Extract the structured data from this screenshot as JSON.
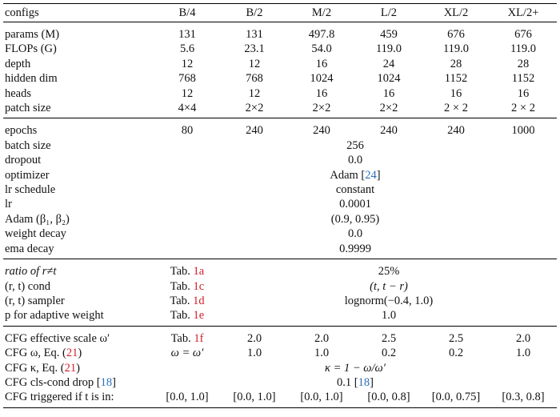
{
  "header": {
    "configs": "configs",
    "cols": [
      "B/4",
      "B/2",
      "M/2",
      "L/2",
      "XL/2",
      "XL/2+"
    ]
  },
  "arch": {
    "params": {
      "label": "params (M)",
      "vals": [
        "131",
        "131",
        "497.8",
        "459",
        "676",
        "676"
      ]
    },
    "flops": {
      "label": "FLOPs (G)",
      "vals": [
        "5.6",
        "23.1",
        "54.0",
        "119.0",
        "119.0",
        "119.0"
      ]
    },
    "depth": {
      "label": "depth",
      "vals": [
        "12",
        "12",
        "16",
        "24",
        "28",
        "28"
      ]
    },
    "hidden": {
      "label": "hidden dim",
      "vals": [
        "768",
        "768",
        "1024",
        "1024",
        "1152",
        "1152"
      ]
    },
    "heads": {
      "label": "heads",
      "vals": [
        "12",
        "12",
        "16",
        "16",
        "16",
        "16"
      ]
    },
    "patch": {
      "label": "patch size",
      "vals": [
        "4×4",
        "2×2",
        "2×2",
        "2×2",
        "2 × 2",
        "2 × 2"
      ]
    }
  },
  "train": {
    "epochs": {
      "label": "epochs",
      "vals": [
        "80",
        "240",
        "240",
        "240",
        "240",
        "1000"
      ]
    },
    "batch": {
      "label": "batch size",
      "val": "256"
    },
    "dropout": {
      "label": "dropout",
      "val": "0.0"
    },
    "optimizer": {
      "label": "optimizer",
      "val": "Adam [",
      "ref": "24",
      "close": "]"
    },
    "lr_schedule": {
      "label": "lr schedule",
      "val": "constant"
    },
    "lr": {
      "label": "lr",
      "val": "0.0001"
    },
    "adam_beta": {
      "label": "Adam (β₁, β₂)",
      "val": "(0.9, 0.95)"
    },
    "weight_decay": {
      "label": "weight decay",
      "val": "0.0"
    },
    "ema_decay": {
      "label": "ema decay",
      "val": "0.9999"
    }
  },
  "rt": {
    "ratio": {
      "label": "ratio of r≠t",
      "tab": "Tab. ",
      "tabref": "1a",
      "val": "25%"
    },
    "cond": {
      "label": "(r, t) cond",
      "tab": "Tab. ",
      "tabref": "1c",
      "val": "(t, t − r)"
    },
    "sampler": {
      "label": "(r, t) sampler",
      "tab": "Tab. ",
      "tabref": "1d",
      "val": "lognorm(−0.4, 1.0)"
    },
    "adaptive": {
      "label": "p for adaptive weight",
      "tab": "Tab. ",
      "tabref": "1e",
      "val": "1.0"
    }
  },
  "cfg": {
    "scale": {
      "label": "CFG effective scale ω′",
      "tab": "Tab. ",
      "tabref": "1f",
      "vals": [
        "2.0",
        "2.0",
        "2.5",
        "2.5",
        "2.0"
      ]
    },
    "omega": {
      "label": "CFG ω, Eq. (",
      "eqref": "21",
      "close": ")",
      "first": "ω = ω′",
      "vals": [
        "1.0",
        "1.0",
        "0.2",
        "0.2",
        "1.0"
      ]
    },
    "kappa": {
      "label": "CFG κ, Eq. (",
      "eqref": "21",
      "close": ")",
      "val": "κ = 1 − ω/ω′"
    },
    "drop": {
      "label": "CFG cls-cond drop [",
      "ref": "18",
      "close": "]",
      "val": "0.1 [",
      "valref": "18",
      "valclose": "]"
    },
    "trigger": {
      "label": "CFG triggered if t is in:",
      "vals": [
        "[0.0, 1.0]",
        "[0.0, 1.0]",
        "[0.0, 1.0]",
        "[0.0, 0.8]",
        "[0.0, 0.75]",
        "[0.3, 0.8]"
      ]
    }
  }
}
